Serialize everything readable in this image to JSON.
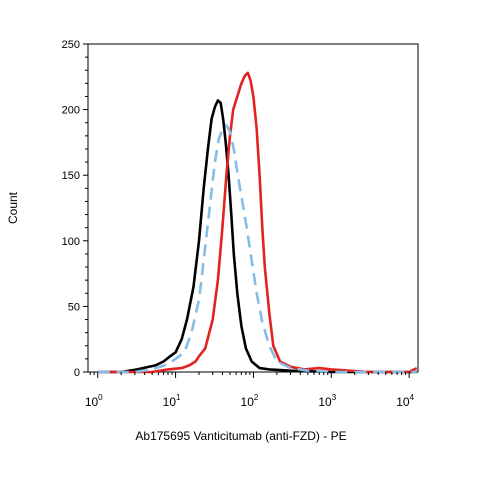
{
  "chart_data": {
    "type": "line",
    "title": "",
    "xlabel": "Ab175695 Vanticitumab (anti-FZD) - PE",
    "ylabel": "Count",
    "xscale": "log",
    "xlim": [
      0.75,
      13000
    ],
    "ylim": [
      0,
      250
    ],
    "y_ticks": [
      "0",
      "50",
      "100",
      "150",
      "200",
      "250"
    ],
    "x_ticks": [
      {
        "base": "10",
        "exp": "0"
      },
      {
        "base": "10",
        "exp": "1"
      },
      {
        "base": "10",
        "exp": "2"
      },
      {
        "base": "10",
        "exp": "3"
      },
      {
        "base": "10",
        "exp": "4"
      }
    ],
    "grid": false,
    "legend": "none",
    "series": [
      {
        "color": "#000000",
        "dash": "solid",
        "points": [
          [
            1.0,
            0
          ],
          [
            2,
            0
          ],
          [
            3.2,
            2
          ],
          [
            5.5,
            5
          ],
          [
            7,
            8
          ],
          [
            8.5,
            12
          ],
          [
            10,
            15
          ],
          [
            12,
            25
          ],
          [
            14,
            40
          ],
          [
            17,
            65
          ],
          [
            20,
            100
          ],
          [
            23,
            140
          ],
          [
            26,
            170
          ],
          [
            29,
            193
          ],
          [
            32,
            202
          ],
          [
            35,
            207
          ],
          [
            38,
            205
          ],
          [
            41,
            192
          ],
          [
            44,
            175
          ],
          [
            48,
            150
          ],
          [
            52,
            120
          ],
          [
            56,
            90
          ],
          [
            62,
            60
          ],
          [
            70,
            35
          ],
          [
            80,
            18
          ],
          [
            95,
            8
          ],
          [
            120,
            3
          ],
          [
            160,
            2
          ],
          [
            300,
            1
          ],
          [
            1000,
            0
          ],
          [
            12500,
            0
          ]
        ]
      },
      {
        "color": "#e32322",
        "dash": "solid",
        "points": [
          [
            1.0,
            0
          ],
          [
            5,
            0
          ],
          [
            8,
            2
          ],
          [
            12,
            3
          ],
          [
            15,
            5
          ],
          [
            18,
            8
          ],
          [
            20,
            12
          ],
          [
            24,
            18
          ],
          [
            30,
            40
          ],
          [
            35,
            70
          ],
          [
            40,
            110
          ],
          [
            45,
            150
          ],
          [
            50,
            180
          ],
          [
            55,
            200
          ],
          [
            62,
            210
          ],
          [
            70,
            220
          ],
          [
            78,
            226
          ],
          [
            85,
            228
          ],
          [
            92,
            222
          ],
          [
            100,
            210
          ],
          [
            110,
            185
          ],
          [
            120,
            150
          ],
          [
            130,
            110
          ],
          [
            140,
            80
          ],
          [
            160,
            45
          ],
          [
            180,
            20
          ],
          [
            220,
            8
          ],
          [
            300,
            4
          ],
          [
            450,
            2
          ],
          [
            700,
            3
          ],
          [
            1000,
            2
          ],
          [
            3000,
            0
          ],
          [
            10000,
            0
          ],
          [
            12500,
            3
          ]
        ]
      },
      {
        "color": "#85bde6",
        "dash": "dashed",
        "points": [
          [
            1.0,
            0
          ],
          [
            3,
            0
          ],
          [
            5,
            2
          ],
          [
            8,
            6
          ],
          [
            10,
            10
          ],
          [
            13,
            15
          ],
          [
            16,
            30
          ],
          [
            20,
            55
          ],
          [
            24,
            95
          ],
          [
            28,
            130
          ],
          [
            32,
            160
          ],
          [
            36,
            178
          ],
          [
            40,
            185
          ],
          [
            45,
            188
          ],
          [
            50,
            183
          ],
          [
            56,
            170
          ],
          [
            63,
            150
          ],
          [
            72,
            130
          ],
          [
            82,
            110
          ],
          [
            95,
            85
          ],
          [
            110,
            60
          ],
          [
            130,
            38
          ],
          [
            160,
            20
          ],
          [
            200,
            8
          ],
          [
            300,
            3
          ],
          [
            500,
            1
          ],
          [
            1000,
            0
          ],
          [
            12500,
            0
          ]
        ]
      }
    ]
  }
}
